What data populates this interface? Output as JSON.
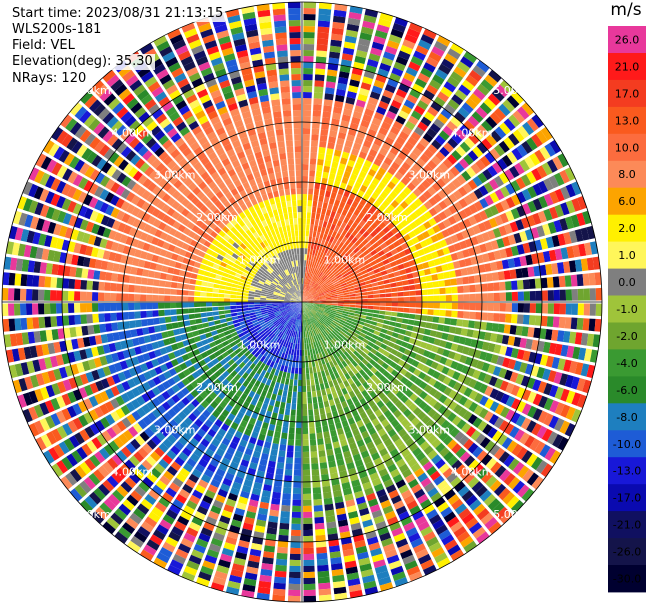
{
  "header": {
    "start_time": "Start time: 2023/08/31 21:13:15",
    "instrument": "WLS200s-181",
    "field": "Field: VEL",
    "elevation": "Elevation(deg): 35.30",
    "nrays": "NRays: 120"
  },
  "colorbar": {
    "unit": "m/s",
    "levels": [
      {
        "label": "26.0",
        "color": "#e8389b"
      },
      {
        "label": "21.0",
        "color": "#ff1a1a"
      },
      {
        "label": "17.0",
        "color": "#f43c20"
      },
      {
        "label": "13.0",
        "color": "#fa5a1e"
      },
      {
        "label": "10.0",
        "color": "#fc6c3e"
      },
      {
        "label": "8.0",
        "color": "#fc8a58"
      },
      {
        "label": "6.0",
        "color": "#fca400"
      },
      {
        "label": "2.0",
        "color": "#fff000"
      },
      {
        "label": "1.0",
        "color": "#fff65a"
      },
      {
        "label": "0.0",
        "color": "#7f7f7f"
      },
      {
        "label": "-1.0",
        "color": "#9fc43a"
      },
      {
        "label": "-2.0",
        "color": "#6fa52f"
      },
      {
        "label": "-4.0",
        "color": "#3a9a32"
      },
      {
        "label": "-6.0",
        "color": "#2a8a2a"
      },
      {
        "label": "-8.0",
        "color": "#1e7fbf"
      },
      {
        "label": "-10.0",
        "color": "#1e5cd6"
      },
      {
        "label": "-13.0",
        "color": "#1818d8"
      },
      {
        "label": "-17.0",
        "color": "#0a0ab0"
      },
      {
        "label": "-21.0",
        "color": "#101060"
      },
      {
        "label": "-26.0",
        "color": "#14144a"
      },
      {
        "label": "-30.0",
        "color": "#000030"
      }
    ]
  },
  "chart_data": {
    "type": "heatmap",
    "projection": "polar PPI",
    "field": "VEL",
    "nrays": 120,
    "range_unit": "km",
    "range_max": 5.0,
    "range_rings": [
      {
        "range": 1,
        "label": "1.00km"
      },
      {
        "range": 2,
        "label": "2.00km"
      },
      {
        "range": 3,
        "label": "3.00km"
      },
      {
        "range": 4,
        "label": "4.00km"
      },
      {
        "range": 5,
        "label": "5.00km"
      }
    ],
    "sectors": [
      {
        "azimuth_from": 270,
        "azimuth_to": 360,
        "value_range": [
          1,
          10
        ],
        "note": "grey near radar, yellow mid, salmon far"
      },
      {
        "azimuth_from": 0,
        "azimuth_to": 90,
        "value_range": [
          2,
          17
        ],
        "note": "orange/red, yellow beyond 2km"
      },
      {
        "azimuth_from": 90,
        "azimuth_to": 180,
        "value_range": [
          -8,
          1
        ],
        "note": "grey/green"
      },
      {
        "azimuth_from": 180,
        "azimuth_to": 270,
        "value_range": [
          -10,
          -2
        ],
        "note": "blue near radar, green mid"
      }
    ],
    "far_range_note": "beyond 3.4km mostly noise spanning the full color scale"
  }
}
